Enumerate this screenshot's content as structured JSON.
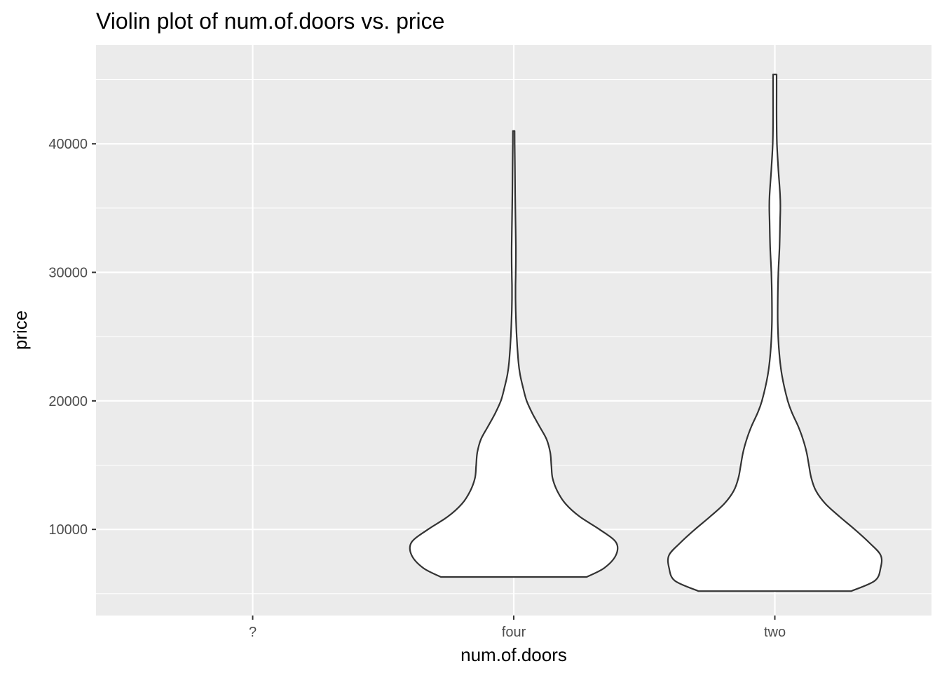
{
  "chart_data": {
    "type": "violin",
    "title": "Violin plot of num.of.doors vs. price",
    "xlabel": "num.of.doors",
    "ylabel": "price",
    "categories": [
      "?",
      "four",
      "two"
    ],
    "y_ticks": [
      10000,
      20000,
      30000,
      40000
    ],
    "y_tick_labels": [
      "10000",
      "20000",
      "30000",
      "40000"
    ],
    "ylim": [
      3300,
      47700
    ],
    "grid": true,
    "colors": {
      "panel": "#ebebeb",
      "grid": "#ffffff",
      "violin_fill": "#ffffff",
      "violin_stroke": "#333333"
    },
    "violins": [
      {
        "category": "?",
        "profile": []
      },
      {
        "category": "four",
        "min": 6300,
        "max": 41000,
        "profile": [
          [
            6300,
            0.62
          ],
          [
            7000,
            0.77
          ],
          [
            8000,
            0.87
          ],
          [
            9000,
            0.87
          ],
          [
            10000,
            0.73
          ],
          [
            11000,
            0.56
          ],
          [
            12000,
            0.44
          ],
          [
            13000,
            0.37
          ],
          [
            14000,
            0.33
          ],
          [
            15000,
            0.32
          ],
          [
            16000,
            0.31
          ],
          [
            17000,
            0.28
          ],
          [
            18000,
            0.22
          ],
          [
            19000,
            0.16
          ],
          [
            20000,
            0.11
          ],
          [
            21000,
            0.08
          ],
          [
            22000,
            0.055
          ],
          [
            23000,
            0.04
          ],
          [
            25000,
            0.025
          ],
          [
            27000,
            0.017
          ],
          [
            28000,
            0.015
          ],
          [
            29000,
            0.015
          ],
          [
            30000,
            0.017
          ],
          [
            31000,
            0.018
          ],
          [
            32000,
            0.018
          ],
          [
            34000,
            0.015
          ],
          [
            36000,
            0.012
          ],
          [
            38000,
            0.01
          ],
          [
            40000,
            0.008
          ],
          [
            41000,
            0.007
          ]
        ]
      },
      {
        "category": "two",
        "min": 5200,
        "max": 45400,
        "profile": [
          [
            5200,
            0.65
          ],
          [
            6000,
            0.85
          ],
          [
            7000,
            0.9
          ],
          [
            8000,
            0.9
          ],
          [
            9000,
            0.8
          ],
          [
            10000,
            0.68
          ],
          [
            11000,
            0.55
          ],
          [
            12000,
            0.43
          ],
          [
            13000,
            0.35
          ],
          [
            14000,
            0.31
          ],
          [
            15000,
            0.29
          ],
          [
            16000,
            0.27
          ],
          [
            17000,
            0.24
          ],
          [
            18000,
            0.2
          ],
          [
            19000,
            0.15
          ],
          [
            20000,
            0.11
          ],
          [
            22000,
            0.06
          ],
          [
            24000,
            0.035
          ],
          [
            26000,
            0.025
          ],
          [
            28000,
            0.025
          ],
          [
            30000,
            0.03
          ],
          [
            32000,
            0.04
          ],
          [
            34000,
            0.045
          ],
          [
            35000,
            0.047
          ],
          [
            36000,
            0.045
          ],
          [
            38000,
            0.03
          ],
          [
            40000,
            0.018
          ],
          [
            42000,
            0.015
          ],
          [
            44000,
            0.015
          ],
          [
            45400,
            0.015
          ]
        ]
      }
    ]
  }
}
